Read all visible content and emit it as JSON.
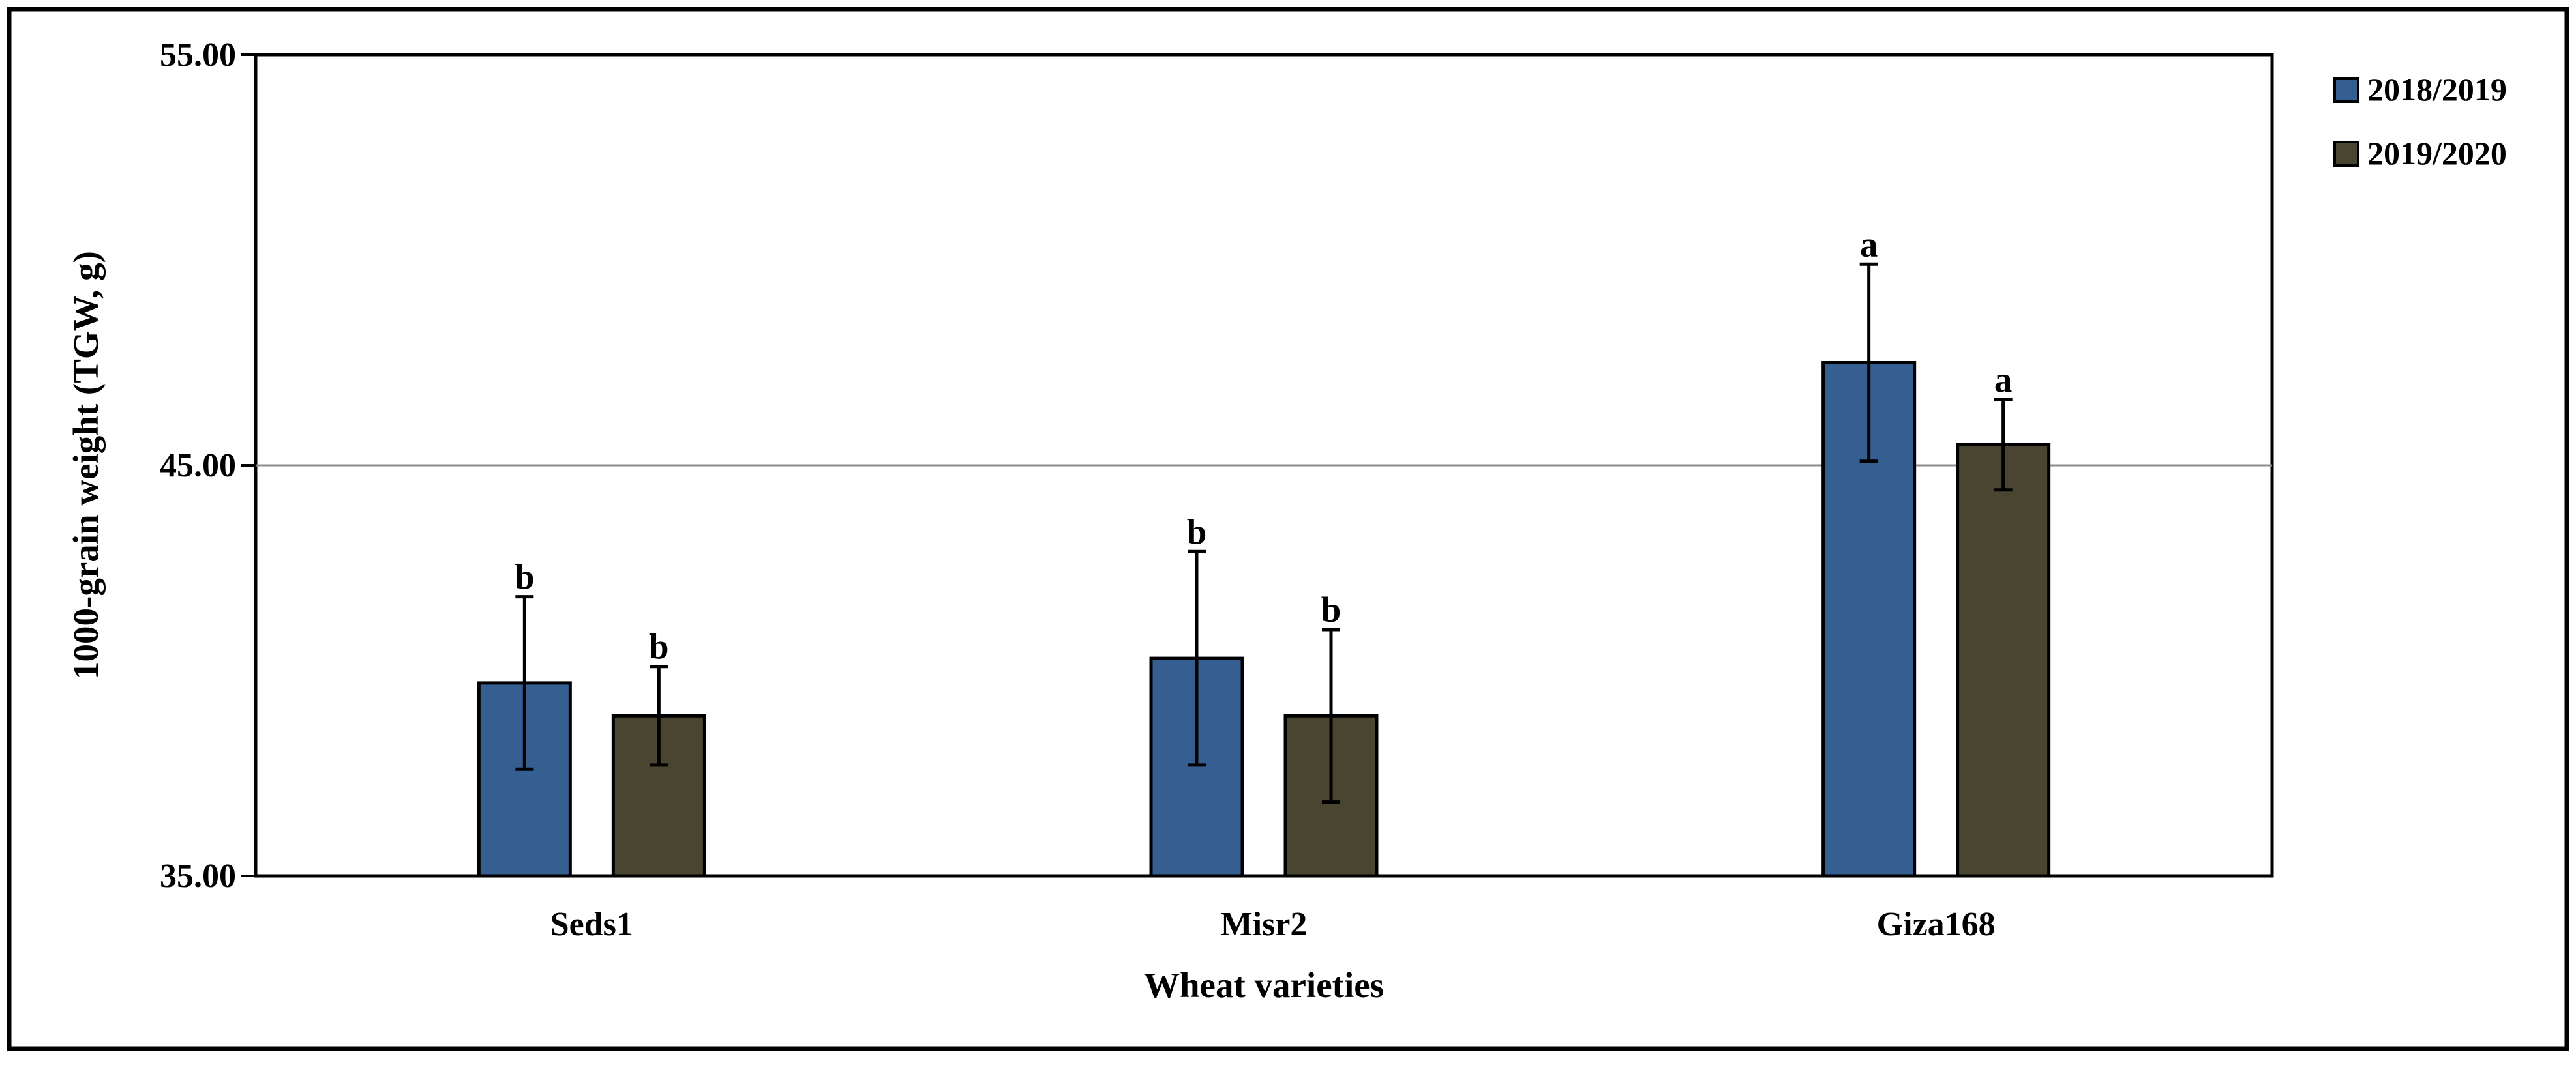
{
  "chart_data": {
    "type": "bar",
    "title": "",
    "xlabel": "Wheat varieties",
    "ylabel": "1000-grain weight (TGW, g)",
    "categories": [
      "Seds1",
      "Misr2",
      "Giza168"
    ],
    "ylim": [
      35.0,
      55.0
    ],
    "yticks": [
      "35.00",
      "45.00",
      "55.00"
    ],
    "ytick_values": [
      35.0,
      45.0,
      55.0
    ],
    "gridlines": [
      45.0
    ],
    "legend_position": "top-right",
    "series": [
      {
        "name": "2018/2019",
        "color": "#365F91",
        "values": [
          39.7,
          40.3,
          47.5
        ],
        "error": [
          2.1,
          2.6,
          2.4
        ],
        "labels": [
          "b",
          "b",
          "a"
        ]
      },
      {
        "name": "2019/2020",
        "color": "#4A4530",
        "values": [
          38.9,
          38.9,
          45.5
        ],
        "error": [
          1.2,
          2.1,
          1.1
        ],
        "labels": [
          "b",
          "b",
          "a"
        ]
      }
    ]
  }
}
